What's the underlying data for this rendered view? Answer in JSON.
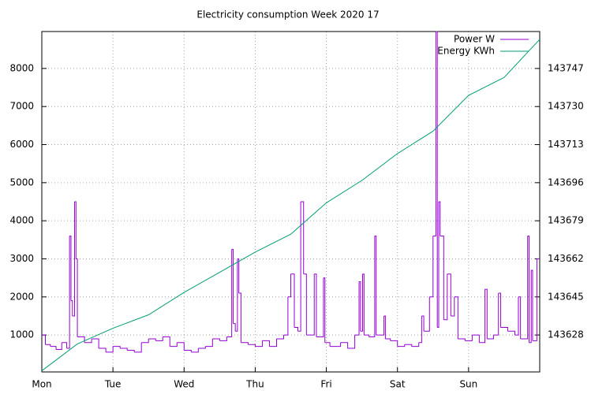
{
  "chart_data": {
    "type": "line",
    "title": "Electricity consumption Week 2020 17",
    "xlim": [
      0,
      7
    ],
    "xticks": [
      {
        "value": 0,
        "label": "Mon"
      },
      {
        "value": 1,
        "label": "Tue"
      },
      {
        "value": 2,
        "label": "Wed"
      },
      {
        "value": 3,
        "label": "Thu"
      },
      {
        "value": 4,
        "label": "Fri"
      },
      {
        "value": 5,
        "label": "Sat"
      },
      {
        "value": 6,
        "label": "Sun"
      }
    ],
    "ylim": [
      30,
      8970
    ],
    "yticks": [
      1000,
      2000,
      3000,
      4000,
      5000,
      6000,
      7000,
      8000
    ],
    "y2lim": [
      143611.5,
      143763.5
    ],
    "y2ticks": [
      143628,
      143645,
      143662,
      143679,
      143696,
      143713,
      143730,
      143747
    ],
    "grid": true,
    "legend": "top-right",
    "series": [
      {
        "name": "Power W",
        "color": "#9400d3",
        "style": "steps",
        "x": [
          0,
          0.05,
          0.12,
          0.2,
          0.28,
          0.35,
          0.39,
          0.41,
          0.43,
          0.46,
          0.48,
          0.5,
          0.6,
          0.7,
          0.8,
          0.9,
          1.0,
          1.1,
          1.2,
          1.3,
          1.4,
          1.5,
          1.6,
          1.7,
          1.8,
          1.9,
          2.0,
          2.1,
          2.2,
          2.3,
          2.4,
          2.5,
          2.6,
          2.67,
          2.69,
          2.72,
          2.75,
          2.77,
          2.8,
          2.9,
          3.0,
          3.1,
          3.2,
          3.3,
          3.4,
          3.46,
          3.5,
          3.55,
          3.6,
          3.64,
          3.68,
          3.72,
          3.83,
          3.86,
          3.96,
          3.98,
          4.05,
          4.2,
          4.3,
          4.4,
          4.46,
          4.48,
          4.51,
          4.53,
          4.6,
          4.68,
          4.7,
          4.81,
          4.83,
          4.9,
          5.0,
          5.1,
          5.2,
          5.3,
          5.34,
          5.37,
          5.45,
          5.5,
          5.54,
          5.56,
          5.58,
          5.6,
          5.65,
          5.7,
          5.75,
          5.8,
          5.85,
          5.95,
          6.05,
          6.15,
          6.23,
          6.26,
          6.35,
          6.42,
          6.45,
          6.55,
          6.65,
          6.7,
          6.73,
          6.83,
          6.85,
          6.88,
          6.9,
          6.96,
          7.0
        ],
        "values": [
          1000,
          750,
          700,
          620,
          800,
          650,
          3600,
          1900,
          1500,
          4500,
          3000,
          950,
          800,
          900,
          650,
          550,
          700,
          650,
          600,
          550,
          800,
          900,
          850,
          950,
          700,
          800,
          600,
          550,
          650,
          700,
          900,
          850,
          950,
          3250,
          1300,
          1100,
          3000,
          2100,
          800,
          750,
          700,
          850,
          700,
          900,
          1000,
          2000,
          2600,
          1200,
          1100,
          4500,
          2600,
          1000,
          2600,
          950,
          2500,
          800,
          700,
          800,
          650,
          1000,
          2400,
          1100,
          2600,
          1000,
          950,
          3600,
          1000,
          1500,
          900,
          850,
          700,
          750,
          700,
          800,
          1500,
          1100,
          2000,
          3600,
          8970,
          1200,
          4500,
          3600,
          1400,
          2600,
          1500,
          2000,
          900,
          850,
          1000,
          800,
          2200,
          900,
          1000,
          2100,
          1200,
          1100,
          1000,
          2000,
          900,
          3600,
          800,
          2700,
          850,
          3000,
          3000
        ]
      },
      {
        "name": "Energy KWh",
        "color": "#009e73",
        "axis": "y2",
        "x": [
          0,
          0.5,
          1.0,
          1.5,
          2.0,
          2.5,
          3.0,
          3.5,
          4.0,
          4.5,
          5.0,
          5.5,
          6.0,
          6.5,
          7.0
        ],
        "values": [
          143612,
          143624,
          143631,
          143637,
          143647,
          143656,
          143665,
          143673,
          143687,
          143697,
          143709,
          143719,
          143735,
          143743,
          143760
        ]
      }
    ]
  }
}
